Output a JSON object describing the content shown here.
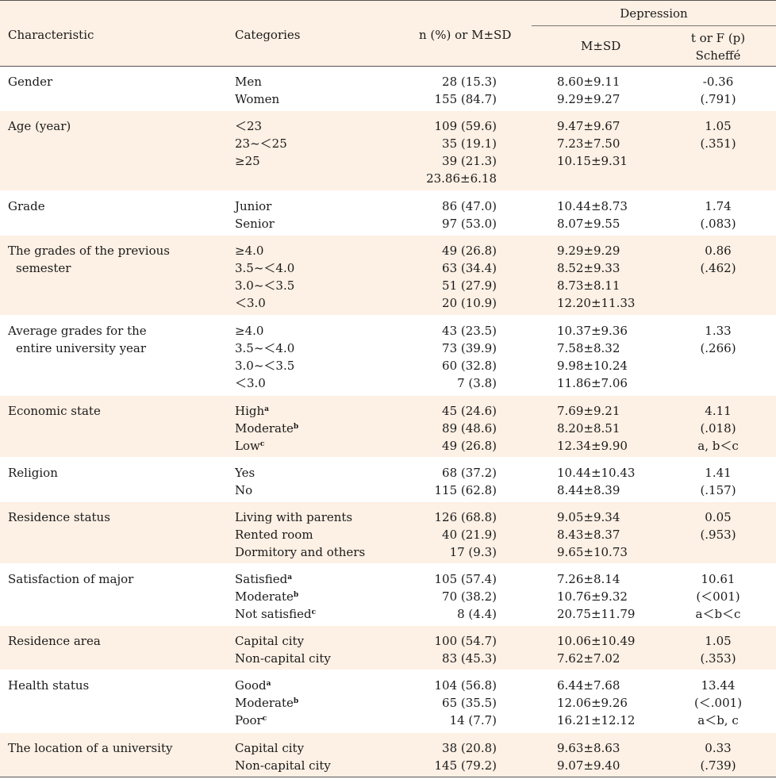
{
  "header": {
    "characteristic": "Characteristic",
    "categories": "Categories",
    "n_pct": "n (%) or M±SD",
    "depression": "Depression",
    "msd": "M±SD",
    "test_line1": "t or F (p)",
    "test_line2": "Scheffé"
  },
  "rows": [
    {
      "label": [
        "Gender"
      ],
      "cats": [
        "Men",
        "Women"
      ],
      "sups": [
        "",
        ""
      ],
      "n": [
        "28 (15.3)",
        "155 (84.7)"
      ],
      "msd": [
        "8.60±9.11",
        "9.29±9.27"
      ],
      "test": [
        "-0.36",
        "(.791)"
      ]
    },
    {
      "label": [
        "Age (year)"
      ],
      "cats": [
        "＜23",
        "23~＜25",
        "≥25",
        ""
      ],
      "sups": [
        "",
        "",
        "",
        ""
      ],
      "n": [
        "109 (59.6)",
        "35 (19.1)",
        "39 (21.3)",
        "23.86±6.18"
      ],
      "msd": [
        "9.47±9.67",
        "7.23±7.50",
        "10.15±9.31",
        ""
      ],
      "test": [
        "1.05",
        "(.351)"
      ]
    },
    {
      "label": [
        "Grade"
      ],
      "cats": [
        "Junior",
        "Senior"
      ],
      "sups": [
        "",
        ""
      ],
      "n": [
        "86 (47.0)",
        "97 (53.0)"
      ],
      "msd": [
        "10.44±8.73",
        "8.07±9.55"
      ],
      "test": [
        "1.74",
        "(.083)"
      ]
    },
    {
      "label": [
        "The grades of the previous",
        "semester"
      ],
      "cats": [
        "≥4.0",
        "3.5~＜4.0",
        "3.0~＜3.5",
        "＜3.0"
      ],
      "sups": [
        "",
        "",
        "",
        ""
      ],
      "n": [
        "49 (26.8)",
        "63 (34.4)",
        "51 (27.9)",
        "20 (10.9)"
      ],
      "msd": [
        "9.29±9.29",
        "8.52±9.33",
        "8.73±8.11",
        "12.20±11.33"
      ],
      "test": [
        "0.86",
        "(.462)"
      ]
    },
    {
      "label": [
        "Average grades for the",
        "entire university year"
      ],
      "cats": [
        "≥4.0",
        "3.5~＜4.0",
        "3.0~＜3.5",
        "＜3.0"
      ],
      "sups": [
        "",
        "",
        "",
        ""
      ],
      "n": [
        "43 (23.5)",
        "73 (39.9)",
        "60 (32.8)",
        "7 (3.8)"
      ],
      "msd": [
        "10.37±9.36",
        "7.58±8.32",
        "9.98±10.24",
        "11.86±7.06"
      ],
      "test": [
        "1.33",
        "(.266)"
      ]
    },
    {
      "label": [
        "Economic state"
      ],
      "cats": [
        "High",
        "Moderate",
        "Low"
      ],
      "sups": [
        "a",
        "b",
        "c"
      ],
      "n": [
        "45 (24.6)",
        "89 (48.6)",
        "49 (26.8)"
      ],
      "msd": [
        "7.69±9.21",
        "8.20±8.51",
        "12.34±9.90"
      ],
      "test": [
        "4.11",
        "(.018)",
        "a, b＜c"
      ]
    },
    {
      "label": [
        "Religion"
      ],
      "cats": [
        "Yes",
        "No"
      ],
      "sups": [
        "",
        ""
      ],
      "n": [
        "68 (37.2)",
        "115 (62.8)"
      ],
      "msd": [
        "10.44±10.43",
        "8.44±8.39"
      ],
      "test": [
        "1.41",
        "(.157)"
      ]
    },
    {
      "label": [
        "Residence status"
      ],
      "cats": [
        "Living with parents",
        "Rented room",
        "Dormitory and others"
      ],
      "sups": [
        "",
        "",
        ""
      ],
      "n": [
        "126 (68.8)",
        "40 (21.9)",
        "17 (9.3)"
      ],
      "msd": [
        "9.05±9.34",
        "8.43±8.37",
        "9.65±10.73"
      ],
      "test": [
        "0.05",
        "(.953)"
      ]
    },
    {
      "label": [
        "Satisfaction of major"
      ],
      "cats": [
        "Satisfied",
        "Moderate",
        "Not satisfied"
      ],
      "sups": [
        "a",
        "b",
        "c"
      ],
      "n": [
        "105 (57.4)",
        "70 (38.2)",
        "8 (4.4)"
      ],
      "msd": [
        "7.26±8.14",
        "10.76±9.32",
        "20.75±11.79"
      ],
      "test": [
        "10.61",
        "(＜001)",
        "a＜b＜c"
      ]
    },
    {
      "label": [
        "Residence area"
      ],
      "cats": [
        "Capital city",
        "Non-capital city"
      ],
      "sups": [
        "",
        ""
      ],
      "n": [
        "100 (54.7)",
        "83 (45.3)"
      ],
      "msd": [
        "10.06±10.49",
        "7.62±7.02"
      ],
      "test": [
        "1.05",
        "(.353)"
      ]
    },
    {
      "label": [
        "Health status"
      ],
      "cats": [
        "Good",
        "Moderate",
        "Poor"
      ],
      "sups": [
        "a",
        "b",
        "c"
      ],
      "n": [
        "104 (56.8)",
        "65 (35.5)",
        "14 (7.7)"
      ],
      "msd": [
        "6.44±7.68",
        "12.06±9.26",
        "16.21±12.12"
      ],
      "test": [
        "13.44",
        "(＜.001)",
        "a＜b, c"
      ]
    },
    {
      "label": [
        "The location of a university"
      ],
      "cats": [
        "Capital city",
        "Non-capital city"
      ],
      "sups": [
        "",
        ""
      ],
      "n": [
        "38 (20.8)",
        "145 (79.2)"
      ],
      "msd": [
        "9.63±8.63",
        "9.07±9.40"
      ],
      "test": [
        "0.33",
        "(.739)"
      ]
    }
  ]
}
